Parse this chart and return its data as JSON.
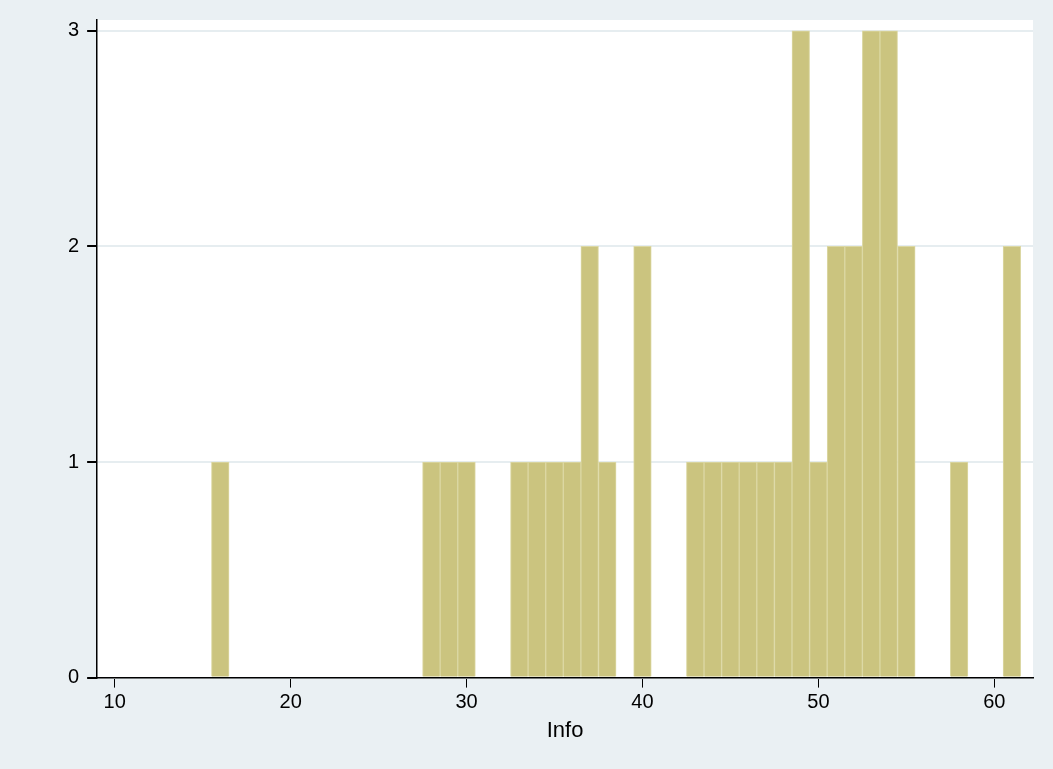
{
  "chart_data": {
    "type": "histogram",
    "xlabel": "Info",
    "bins": [
      15.5,
      16.5,
      17.5,
      18.5,
      19.5,
      20.5,
      21.5,
      22.5,
      23.5,
      24.5,
      25.5,
      26.5,
      27.5,
      28.5,
      29.5,
      30.5,
      31.5,
      32.5,
      33.5,
      34.5,
      35.5,
      36.5,
      37.5,
      38.5,
      39.5,
      40.5,
      41.5,
      42.5,
      43.5,
      44.5,
      45.5,
      46.5,
      47.5,
      48.5,
      49.5,
      50.5,
      51.5,
      52.5,
      53.5,
      54.5,
      55.5,
      56.5,
      57.5,
      58.5,
      59.5,
      60.5,
      61.5
    ],
    "values": [
      1,
      0,
      0,
      0,
      0,
      0,
      0,
      0,
      0,
      0,
      0,
      0,
      1,
      1,
      1,
      0,
      0,
      1,
      1,
      1,
      1,
      2,
      1,
      0,
      2,
      0,
      0,
      1,
      1,
      1,
      1,
      1,
      1,
      3,
      1,
      2,
      2,
      3,
      3,
      2,
      0,
      0,
      1,
      0,
      0,
      2
    ],
    "color": "#cbc47f",
    "xlim": [
      9,
      62.2
    ],
    "ylim": [
      0,
      3.05
    ],
    "xticks": [
      10,
      20,
      30,
      40,
      50,
      60
    ],
    "yticks": [
      0,
      1,
      2,
      3
    ],
    "grid": "y"
  }
}
